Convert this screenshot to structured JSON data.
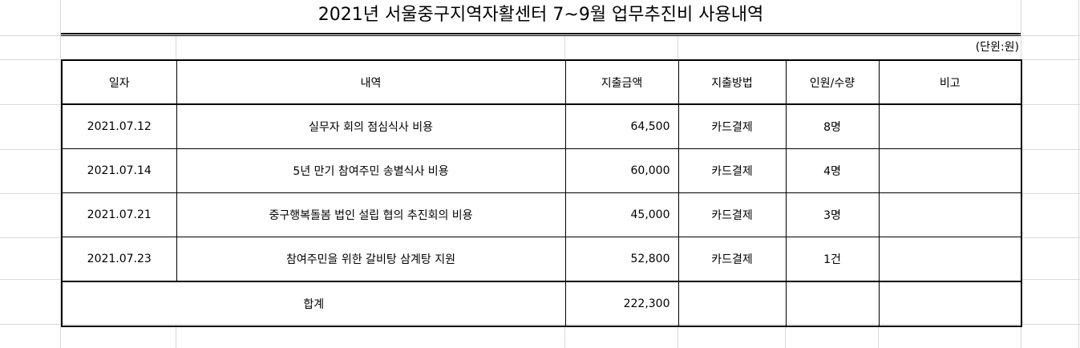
{
  "title": "2021년 서울중구지역자활센터 7~9월 업무추진비 사용내역",
  "unit": "(단윈:원)",
  "headers": [
    "일자",
    "내역",
    "지출금액",
    "지출방법",
    "인원/수량",
    "비고"
  ],
  "rows": [
    {
      "date": "2021.07.12",
      "desc": "실무자 회의 점심식사 비용",
      "amount": "64,500",
      "method": "카드결제",
      "count": "8명",
      "note": ""
    },
    {
      "date": "2021.07.14",
      "desc": "5년 만기 참여주민 송별식사 비용",
      "amount": "60,000",
      "method": "카드결제",
      "count": "4명",
      "note": ""
    },
    {
      "date": "2021.07.21",
      "desc": "중구행복돌봄 법인 설립 협의 추진회의 비용",
      "amount": "45,000",
      "method": "카드결제",
      "count": "3명",
      "note": ""
    },
    {
      "date": "2021.07.23",
      "desc": "참여주민을 위한 갈비탕 삼계탕 지원",
      "amount": "52,800",
      "method": "카드결제",
      "count": "1건",
      "note": ""
    }
  ],
  "total": {
    "label": "합계",
    "amount": "222,300"
  }
}
